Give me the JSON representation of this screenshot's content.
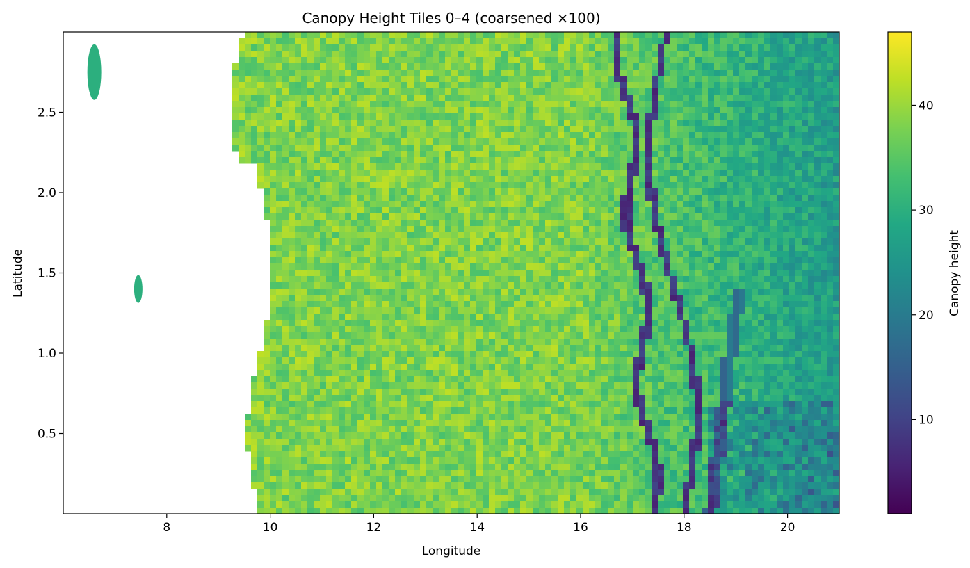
{
  "chart_data": {
    "type": "heatmap",
    "title": "Canopy Height Tiles 0–4 (coarsened ×100)",
    "xlabel": "Longitude",
    "ylabel": "Latitude",
    "xlim": [
      6.0,
      21.0
    ],
    "ylim": [
      0.0,
      3.0
    ],
    "x_ticks": [
      8,
      10,
      12,
      14,
      16,
      18,
      20
    ],
    "y_ticks": [
      0.5,
      1.0,
      1.5,
      2.0,
      2.5
    ],
    "x_tick_labels": [
      "8",
      "10",
      "12",
      "14",
      "16",
      "18",
      "20"
    ],
    "y_tick_labels": [
      "0.5",
      "1.0",
      "1.5",
      "2.0",
      "2.5"
    ],
    "colormap": "viridis",
    "colorbar": {
      "label": "Canopy height",
      "range": [
        1,
        47
      ],
      "ticks": [
        10,
        20,
        30,
        40
      ],
      "tick_labels": [
        "10",
        "20",
        "30",
        "40"
      ]
    },
    "grid": false,
    "coastline_longitude_approx": 9.8,
    "field_summary": {
      "typical_value_west": 38,
      "typical_value_east": 26,
      "rivers_low_value": 5
    }
  }
}
